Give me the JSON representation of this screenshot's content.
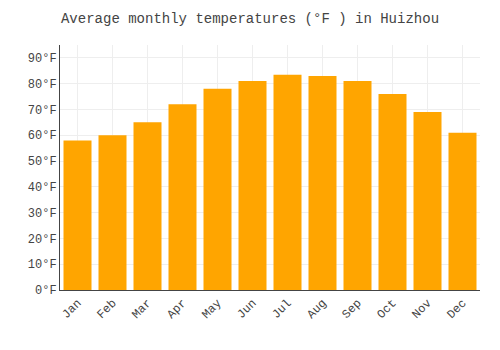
{
  "chart_data": {
    "type": "bar",
    "title": "Average monthly temperatures (°F ) in Huizhou",
    "categories": [
      "Jan",
      "Feb",
      "Mar",
      "Apr",
      "May",
      "Jun",
      "Jul",
      "Aug",
      "Sep",
      "Oct",
      "Nov",
      "Dec"
    ],
    "values": [
      58,
      60,
      65,
      72,
      78,
      81,
      83.5,
      83,
      81,
      76,
      69,
      61
    ],
    "color": "#FFA500",
    "ylim": [
      0,
      95
    ],
    "yticks": [
      {
        "value": 0,
        "label": "0°F"
      },
      {
        "value": 10,
        "label": "10°F"
      },
      {
        "value": 20,
        "label": "20°F"
      },
      {
        "value": 30,
        "label": "30°F"
      },
      {
        "value": 40,
        "label": "40°F"
      },
      {
        "value": 50,
        "label": "50°F"
      },
      {
        "value": 60,
        "label": "60°F"
      },
      {
        "value": 70,
        "label": "70°F"
      },
      {
        "value": 80,
        "label": "80°F"
      },
      {
        "value": 90,
        "label": "90°F"
      }
    ],
    "grid": true
  }
}
